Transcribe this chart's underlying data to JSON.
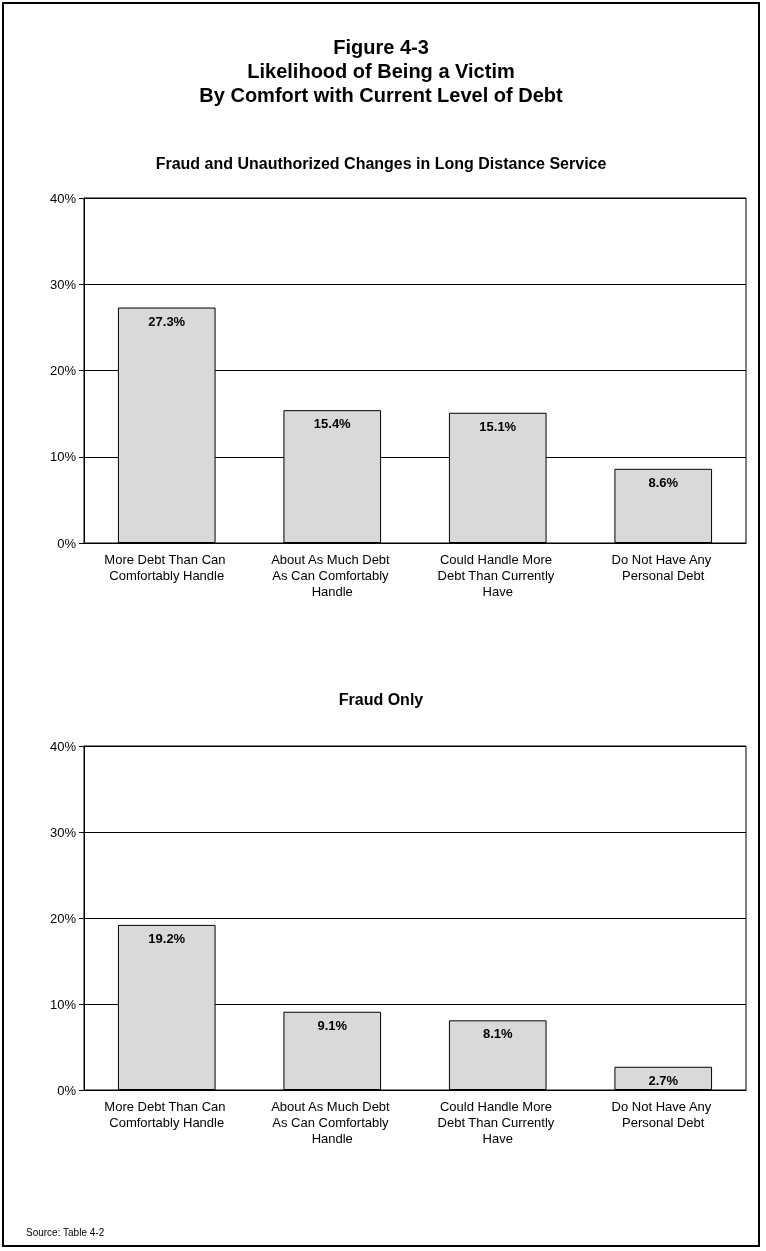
{
  "chart_data": [
    {
      "type": "bar",
      "title": "Figure 4-3\nLikelihood of Being a Victim\nBy Comfort with Current Level of Debt",
      "subtitle": "Fraud and Unauthorized Changes in Long Distance Service",
      "categories": [
        "More Debt Than Can Comfortably Handle",
        "About As Much Debt As Can Comfortably Handle",
        "Could Handle More Debt Than Currently Have",
        "Do Not Have Any Personal Debt"
      ],
      "values": [
        27.3,
        15.4,
        15.1,
        8.6
      ],
      "value_labels": [
        "27.3%",
        "15.4%",
        "15.1%",
        "8.6%"
      ],
      "color": "#d9d9d9",
      "ylim": [
        0,
        40
      ],
      "yticks": [
        {
          "value": 0,
          "label": "0%"
        },
        {
          "value": 10,
          "label": "10%"
        },
        {
          "value": 20,
          "label": "20%"
        },
        {
          "value": 30,
          "label": "30%"
        },
        {
          "value": 40,
          "label": "40%"
        }
      ],
      "grid": "y"
    },
    {
      "type": "bar",
      "title": "Fraud Only",
      "categories": [
        "More Debt Than Can Comfortably Handle",
        "About As Much Debt As Can Comfortably Handle",
        "Could Handle More Debt Than Currently Have",
        "Do Not Have Any Personal Debt"
      ],
      "values": [
        19.2,
        9.1,
        8.1,
        2.7
      ],
      "value_labels": [
        "19.2%",
        "9.1%",
        "8.1%",
        "2.7%"
      ],
      "color": "#d9d9d9",
      "ylim": [
        0,
        40
      ],
      "yticks": [
        {
          "value": 0,
          "label": "0%"
        },
        {
          "value": 10,
          "label": "10%"
        },
        {
          "value": 20,
          "label": "20%"
        },
        {
          "value": 30,
          "label": "30%"
        },
        {
          "value": 40,
          "label": "40%"
        }
      ],
      "grid": "y",
      "annotations": [
        "Source: Table 4-2"
      ]
    }
  ]
}
